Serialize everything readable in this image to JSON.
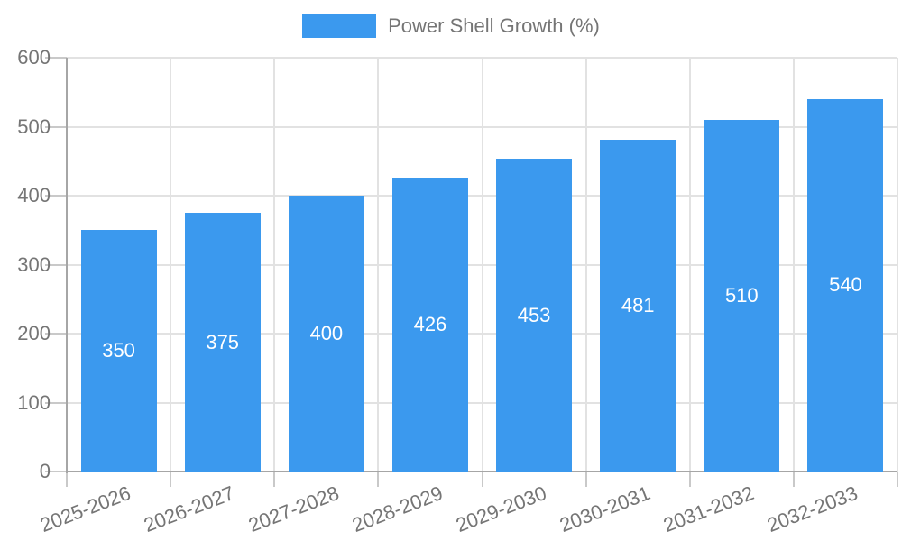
{
  "legend": {
    "label": "Power Shell Growth (%)"
  },
  "colors": {
    "bar": "#3B99EE",
    "grid": "#e2e2e2",
    "axis": "#a6a6a6",
    "tick_mark": "#c9c9c9",
    "tick_text": "#757575",
    "bar_label_text": "#ffffff"
  },
  "chart_data": {
    "type": "bar",
    "title": "",
    "legend": "Power Shell Growth (%)",
    "legend_position": "top-center",
    "categories": [
      "2025-2026",
      "2026-2027",
      "2027-2028",
      "2028-2029",
      "2029-2030",
      "2030-2031",
      "2031-2032",
      "2032-2033"
    ],
    "values": [
      350,
      375,
      400,
      426,
      453,
      481,
      510,
      540
    ],
    "series": [
      {
        "name": "Power Shell Growth (%)",
        "values": [
          350,
          375,
          400,
          426,
          453,
          481,
          510,
          540
        ]
      }
    ],
    "xlabel": "",
    "ylabel": "",
    "ylim": [
      0,
      600
    ],
    "yticks": [
      0,
      100,
      200,
      300,
      400,
      500,
      600
    ],
    "grid": true,
    "value_labels": "inside-center",
    "xtick_rotation_deg": 21
  }
}
